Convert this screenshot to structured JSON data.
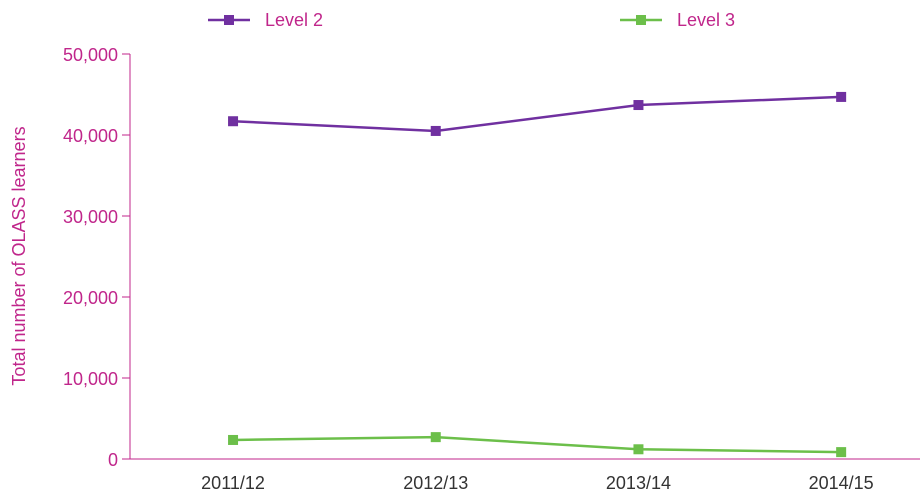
{
  "chart_data": {
    "type": "line",
    "y_axis_label": "Total number of OLASS learners",
    "categories": [
      "2011/12",
      "2012/13",
      "2013/14",
      "2014/15"
    ],
    "series": [
      {
        "name": "Level 2",
        "color": "#7030a0",
        "values": [
          41700,
          40500,
          43700,
          44700
        ]
      },
      {
        "name": "Level 3",
        "color": "#6cbf4a",
        "values": [
          2350,
          2700,
          1200,
          850
        ]
      }
    ],
    "ylim": [
      0,
      50000
    ],
    "yticks": [
      0,
      {
        "value": 10000,
        "label": "10,000"
      },
      {
        "value": 20000,
        "label": "20,000"
      },
      {
        "value": 30000,
        "label": "30,000"
      },
      {
        "value": 40000,
        "label": "40,000"
      },
      {
        "value": 50000,
        "label": "50,000"
      }
    ],
    "grid": false,
    "legend": "top"
  }
}
